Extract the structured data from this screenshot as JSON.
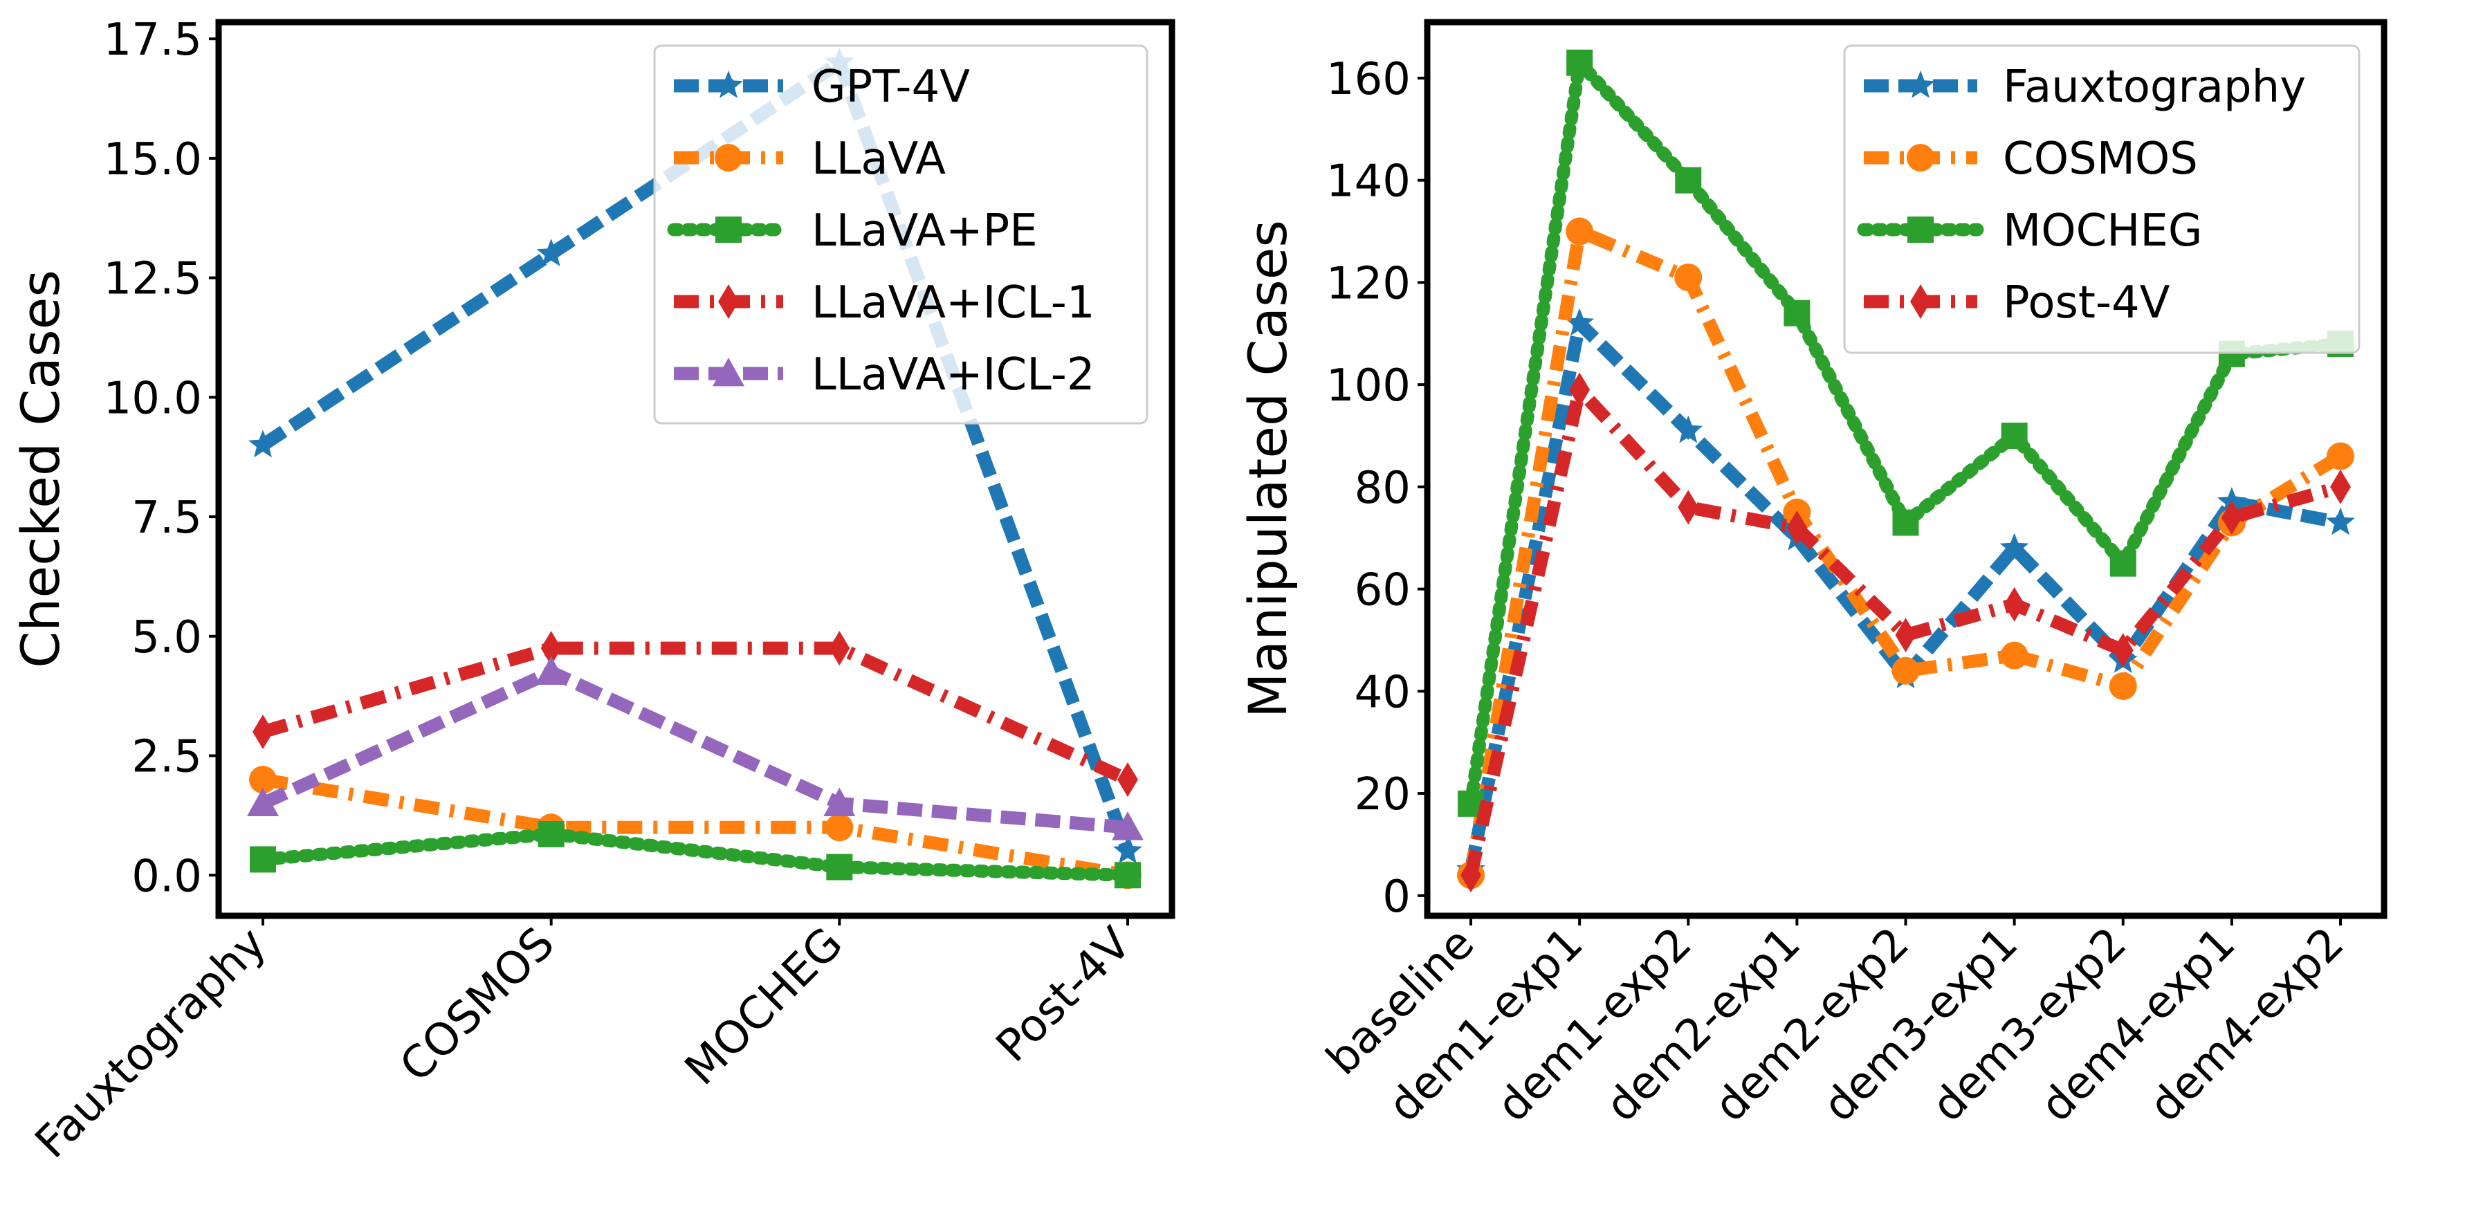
{
  "chart_data": [
    {
      "type": "line",
      "title": "",
      "xlabel": "",
      "ylabel": "Checked Cases",
      "categories": [
        "Fauxtography",
        "COSMOS",
        "MOCHEG",
        "Post-4V"
      ],
      "ylim": [
        -0.85,
        17.85
      ],
      "yticks": [
        0.0,
        2.5,
        5.0,
        7.5,
        10.0,
        12.5,
        15.0,
        17.5
      ],
      "ytick_labels": [
        "0.0",
        "2.5",
        "5.0",
        "7.5",
        "10.0",
        "12.5",
        "15.0",
        "17.5"
      ],
      "grid": false,
      "legend": "top-right",
      "series": [
        {
          "name": "GPT-4V",
          "values": [
            9,
            13,
            17,
            0.5
          ],
          "color": "#1f77b4",
          "marker": "star",
          "linestyle": "dashed"
        },
        {
          "name": "LLaVA",
          "values": [
            2,
            1,
            1,
            0
          ],
          "color": "#ff7f0e",
          "marker": "circle",
          "linestyle": "dashdot"
        },
        {
          "name": "LLaVA+PE",
          "values": [
            0.33,
            0.86,
            0.17,
            0
          ],
          "color": "#2ca02c",
          "marker": "square",
          "linestyle": "dotted"
        },
        {
          "name": "LLaVA+ICL-1",
          "values": [
            3,
            4.75,
            4.75,
            2
          ],
          "color": "#d62728",
          "marker": "diamond",
          "linestyle": "dashdot"
        },
        {
          "name": "LLaVA+ICL-2",
          "values": [
            1.5,
            4.25,
            1.5,
            1
          ],
          "color": "#9467bd",
          "marker": "triangle",
          "linestyle": "dashed"
        }
      ]
    },
    {
      "type": "line",
      "title": "",
      "xlabel": "",
      "ylabel": "Manipulated Cases",
      "categories": [
        "baseline",
        "dem1-exp1",
        "dem1-exp2",
        "dem2-exp1",
        "dem2-exp2",
        "dem3-exp1",
        "dem3-exp2",
        "dem4-exp1",
        "dem4-exp2"
      ],
      "ylim": [
        -3.95,
        170.95
      ],
      "yticks": [
        0,
        20,
        40,
        60,
        80,
        100,
        120,
        140,
        160
      ],
      "ytick_labels": [
        "0",
        "20",
        "40",
        "60",
        "80",
        "100",
        "120",
        "140",
        "160"
      ],
      "grid": false,
      "legend": "top-right",
      "series": [
        {
          "name": "Fauxtography",
          "values": [
            5,
            112,
            91,
            70,
            43,
            68,
            46,
            77,
            73
          ],
          "color": "#1f77b4",
          "marker": "star",
          "linestyle": "dashed"
        },
        {
          "name": "COSMOS",
          "values": [
            4,
            130,
            121,
            75,
            44,
            47,
            41,
            73,
            86
          ],
          "color": "#ff7f0e",
          "marker": "circle",
          "linestyle": "dashdot"
        },
        {
          "name": "MOCHEG",
          "values": [
            18,
            163,
            140,
            114,
            73,
            90,
            65,
            106,
            108
          ],
          "color": "#2ca02c",
          "marker": "square",
          "linestyle": "dotted"
        },
        {
          "name": "Post-4V",
          "values": [
            4,
            99,
            76,
            72,
            51,
            57,
            48,
            74,
            80
          ],
          "color": "#d62728",
          "marker": "diamond",
          "linestyle": "dashdot"
        }
      ]
    }
  ]
}
